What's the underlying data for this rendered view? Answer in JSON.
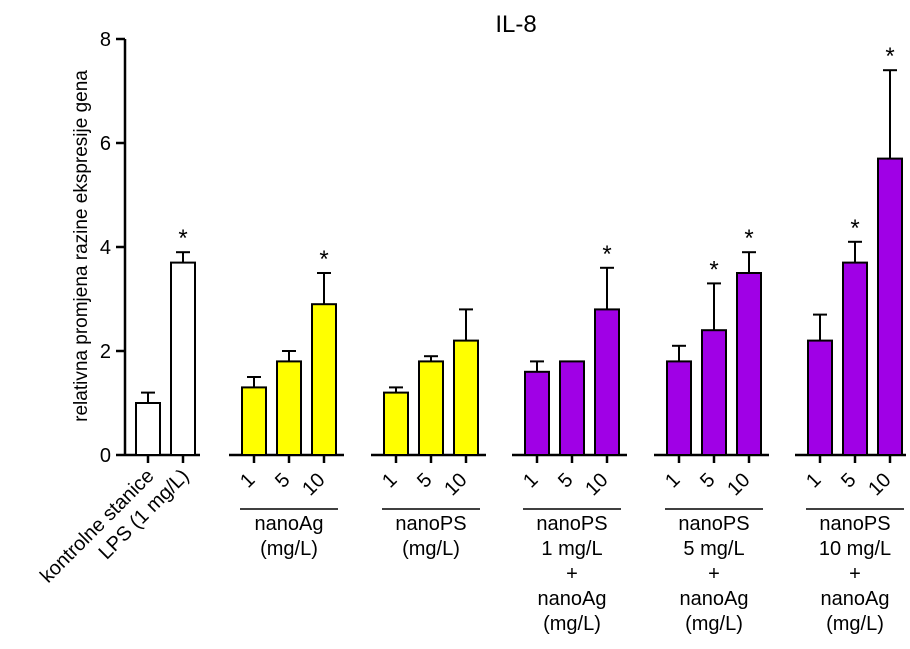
{
  "chart_data": {
    "type": "bar",
    "title": "IL-8",
    "ylabel": "relativna promjena razine ekspresije gena",
    "ylim": [
      0,
      8
    ],
    "yticks": [
      "0",
      "2",
      "4",
      "6",
      "8"
    ],
    "grid": false,
    "colors": {
      "control": "#ffffff",
      "nanoAg": "#ffff00",
      "nanoPS": "#ffff00",
      "combo": "#a000e6",
      "outline": "#000000"
    },
    "bars": [
      {
        "tick": "kontrolne stanice",
        "value": 1.0,
        "error": 0.2,
        "star": "",
        "color": "control"
      },
      {
        "tick": "LPS (1 mg/L)",
        "value": 3.7,
        "error": 0.2,
        "star": "*",
        "color": "control"
      },
      {
        "tick": "1",
        "value": 1.3,
        "error": 0.2,
        "star": "",
        "color": "nanoAg"
      },
      {
        "tick": "5",
        "value": 1.8,
        "error": 0.2,
        "star": "",
        "color": "nanoAg"
      },
      {
        "tick": "10",
        "value": 2.9,
        "error": 0.6,
        "star": "*",
        "color": "nanoAg"
      },
      {
        "tick": "1",
        "value": 1.2,
        "error": 0.1,
        "star": "",
        "color": "nanoPS"
      },
      {
        "tick": "5",
        "value": 1.8,
        "error": 0.1,
        "star": "",
        "color": "nanoPS"
      },
      {
        "tick": "10",
        "value": 2.2,
        "error": 0.6,
        "star": "",
        "color": "nanoPS"
      },
      {
        "tick": "1",
        "value": 1.6,
        "error": 0.2,
        "star": "",
        "color": "combo"
      },
      {
        "tick": "5",
        "value": 1.8,
        "error": 0.0,
        "star": "",
        "color": "combo"
      },
      {
        "tick": "10",
        "value": 2.8,
        "error": 0.8,
        "star": "*",
        "color": "combo"
      },
      {
        "tick": "1",
        "value": 1.8,
        "error": 0.3,
        "star": "",
        "color": "combo"
      },
      {
        "tick": "5",
        "value": 2.4,
        "error": 0.9,
        "star": "*",
        "color": "combo"
      },
      {
        "tick": "10",
        "value": 3.5,
        "error": 0.4,
        "star": "*",
        "color": "combo"
      },
      {
        "tick": "1",
        "value": 2.2,
        "error": 0.5,
        "star": "",
        "color": "combo"
      },
      {
        "tick": "5",
        "value": 3.7,
        "error": 0.4,
        "star": "*",
        "color": "combo"
      },
      {
        "tick": "10",
        "value": 5.7,
        "error": 1.7,
        "star": "*",
        "color": "combo"
      }
    ],
    "groups": [
      {
        "start": 2,
        "end": 4,
        "lines": [
          "nanoAg",
          "(mg/L)"
        ]
      },
      {
        "start": 5,
        "end": 7,
        "lines": [
          "nanoPS",
          "(mg/L)"
        ]
      },
      {
        "start": 8,
        "end": 10,
        "lines": [
          "nanoPS",
          "1 mg/L",
          "+",
          "nanoAg",
          "(mg/L)"
        ]
      },
      {
        "start": 11,
        "end": 13,
        "lines": [
          "nanoPS",
          "5 mg/L",
          "+",
          "nanoAg",
          "(mg/L)"
        ]
      },
      {
        "start": 14,
        "end": 16,
        "lines": [
          "nanoPS",
          "10 mg/L",
          "+",
          "nanoAg",
          "(mg/L)"
        ]
      }
    ]
  }
}
